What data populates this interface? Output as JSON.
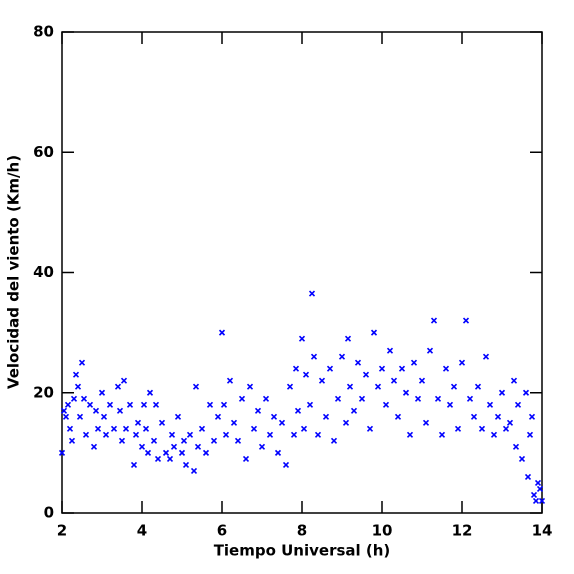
{
  "chart_data": {
    "type": "scatter",
    "xlabel": "Tiempo Universal (h)",
    "ylabel": "Velocidad del viento (Km/h)",
    "color": "#0000ff",
    "xlim": [
      2,
      14
    ],
    "xticks": [
      2,
      4,
      6,
      8,
      10,
      12,
      14
    ],
    "ylim": [
      0,
      80
    ],
    "yticks": [
      0,
      20,
      40,
      60,
      80
    ],
    "x": [
      2.0,
      2.05,
      2.1,
      2.15,
      2.2,
      2.25,
      2.3,
      2.35,
      2.4,
      2.45,
      2.5,
      2.55,
      2.6,
      2.7,
      2.8,
      2.85,
      2.9,
      3.0,
      3.05,
      3.1,
      3.2,
      3.3,
      3.4,
      3.45,
      3.5,
      3.55,
      3.6,
      3.7,
      3.8,
      3.85,
      3.9,
      4.0,
      4.05,
      4.1,
      4.15,
      4.2,
      4.3,
      4.35,
      4.4,
      4.5,
      4.6,
      4.7,
      4.75,
      4.8,
      4.9,
      5.0,
      5.05,
      5.1,
      5.2,
      5.3,
      5.35,
      5.4,
      5.5,
      5.6,
      5.7,
      5.8,
      5.9,
      6.0,
      6.05,
      6.1,
      6.2,
      6.3,
      6.4,
      6.5,
      6.6,
      6.7,
      6.8,
      6.9,
      7.0,
      7.1,
      7.2,
      7.3,
      7.4,
      7.5,
      7.6,
      7.7,
      7.8,
      7.85,
      7.9,
      8.0,
      8.05,
      8.1,
      8.2,
      8.25,
      8.3,
      8.4,
      8.5,
      8.6,
      8.7,
      8.8,
      8.9,
      9.0,
      9.1,
      9.15,
      9.2,
      9.3,
      9.4,
      9.5,
      9.6,
      9.7,
      9.8,
      9.9,
      10.0,
      10.1,
      10.2,
      10.3,
      10.4,
      10.5,
      10.6,
      10.7,
      10.8,
      10.9,
      11.0,
      11.1,
      11.2,
      11.3,
      11.4,
      11.5,
      11.6,
      11.7,
      11.8,
      11.9,
      12.0,
      12.1,
      12.2,
      12.3,
      12.4,
      12.5,
      12.6,
      12.7,
      12.8,
      12.9,
      13.0,
      13.1,
      13.2,
      13.3,
      13.35,
      13.4,
      13.5,
      13.6,
      13.65,
      13.7,
      13.75,
      13.8,
      13.85,
      13.9,
      13.95,
      14.0
    ],
    "y": [
      10,
      17,
      16,
      18,
      14,
      12,
      19,
      23,
      21,
      16,
      25,
      19,
      13,
      18,
      11,
      17,
      14,
      20,
      16,
      13,
      18,
      14,
      21,
      17,
      12,
      22,
      14,
      18,
      8,
      13,
      15,
      11,
      18,
      14,
      10,
      20,
      12,
      18,
      9,
      15,
      10,
      9,
      13,
      11,
      16,
      10,
      12,
      8,
      13,
      7,
      21,
      11,
      14,
      10,
      18,
      12,
      16,
      30,
      18,
      13,
      22,
      15,
      12,
      19,
      9,
      21,
      14,
      17,
      11,
      19,
      13,
      16,
      10,
      15,
      8,
      21,
      13,
      24,
      17,
      29,
      14,
      23,
      18,
      36.5,
      26,
      13,
      22,
      16,
      24,
      12,
      19,
      26,
      15,
      29,
      21,
      17,
      25,
      19,
      23,
      14,
      30,
      21,
      24,
      18,
      27,
      22,
      16,
      24,
      20,
      13,
      25,
      19,
      22,
      15,
      27,
      32,
      19,
      13,
      24,
      18,
      21,
      14,
      25,
      32,
      19,
      16,
      21,
      14,
      26,
      18,
      13,
      16,
      20,
      14,
      15,
      22,
      11,
      18,
      9,
      20,
      6,
      13,
      16,
      3,
      2,
      5,
      4,
      2
    ]
  }
}
